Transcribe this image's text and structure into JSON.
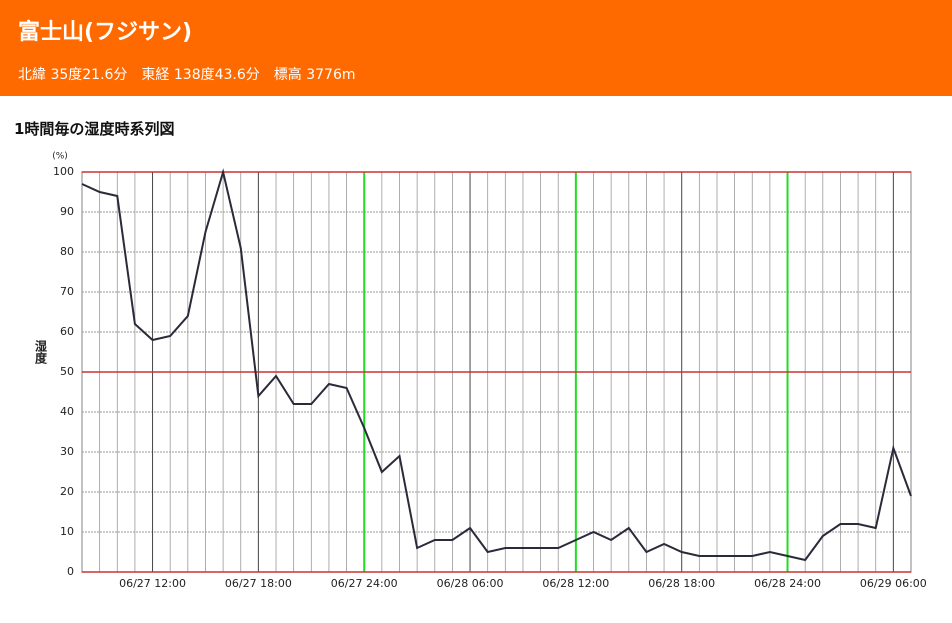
{
  "header": {
    "title": "富士山(フジサン)",
    "subtitle": "北緯 35度21.6分　東経 138度43.6分　標高 3776m"
  },
  "chart_data": {
    "type": "line",
    "title": "1時間毎の湿度時系列図",
    "y_label": "湿度",
    "y_unit": "(%)",
    "categories": [
      null,
      null,
      null,
      null,
      "06/27 12:00",
      null,
      null,
      null,
      null,
      null,
      "06/27 18:00",
      null,
      null,
      null,
      null,
      null,
      "06/27 24:00",
      null,
      null,
      null,
      null,
      null,
      "06/28 06:00",
      null,
      null,
      null,
      null,
      null,
      "06/28 12:00",
      null,
      null,
      null,
      null,
      null,
      "06/28 18:00",
      null,
      null,
      null,
      null,
      null,
      "06/28 24:00",
      null,
      null,
      null,
      null,
      null,
      "06/29 06:00",
      null
    ],
    "values": [
      97,
      95,
      94,
      62,
      58,
      59,
      64,
      85,
      100,
      81,
      44,
      49,
      42,
      42,
      47,
      46,
      36,
      25,
      29,
      6,
      8,
      8,
      11,
      5,
      6,
      6,
      6,
      6,
      8,
      10,
      8,
      11,
      5,
      7,
      5,
      4,
      4,
      4,
      4,
      5,
      4,
      3,
      9,
      12,
      12,
      11,
      31,
      19
    ],
    "color": "#2a2a3a",
    "ylim": [
      0,
      100
    ],
    "yticks": [
      0,
      10,
      20,
      30,
      40,
      50,
      60,
      70,
      80,
      90,
      100
    ],
    "grid": true,
    "ref_lines": {
      "values": [
        0,
        50,
        100
      ],
      "color": "#cc3333"
    },
    "major_colors": [
      "#444444",
      "#444444",
      "#22dd22",
      "#444444",
      "#22dd22",
      "#444444",
      "#22dd22",
      "#444444"
    ]
  }
}
